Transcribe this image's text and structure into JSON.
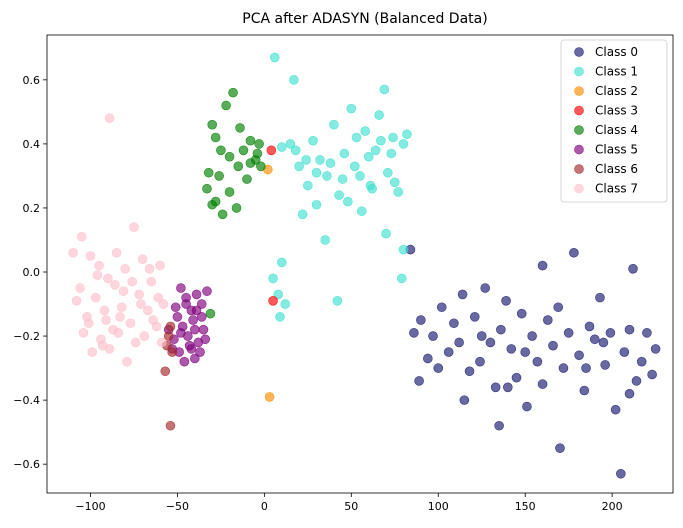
{
  "chart_data": {
    "type": "scatter",
    "title": "PCA after ADASYN (Balanced Data)",
    "xlabel": "",
    "ylabel": "",
    "xlim": [
      -125,
      235
    ],
    "ylim": [
      -0.69,
      0.74
    ],
    "xticks": [
      -100,
      -50,
      0,
      50,
      100,
      150,
      200
    ],
    "yticks": [
      -0.6,
      -0.4,
      -0.2,
      0.0,
      0.2,
      0.4,
      0.6
    ],
    "xtick_labels": [
      "−100",
      "−50",
      "0",
      "50",
      "100",
      "150",
      "200"
    ],
    "ytick_labels": [
      "−0.6",
      "−0.4",
      "−0.2",
      "0.0",
      "0.2",
      "0.4",
      "0.6"
    ],
    "grid": false,
    "legend_position": "top-right",
    "series": [
      {
        "name": "Class 0",
        "color": "#191970",
        "points": [
          [
            84,
            0.07
          ],
          [
            86,
            -0.19
          ],
          [
            89,
            -0.34
          ],
          [
            94,
            -0.27
          ],
          [
            97,
            -0.2
          ],
          [
            102,
            -0.11
          ],
          [
            106,
            -0.25
          ],
          [
            109,
            -0.16
          ],
          [
            112,
            -0.22
          ],
          [
            114,
            -0.07
          ],
          [
            118,
            -0.31
          ],
          [
            121,
            -0.14
          ],
          [
            124,
            -0.28
          ],
          [
            127,
            -0.05
          ],
          [
            130,
            -0.22
          ],
          [
            133,
            -0.36
          ],
          [
            136,
            -0.18
          ],
          [
            139,
            -0.09
          ],
          [
            142,
            -0.24
          ],
          [
            145,
            -0.33
          ],
          [
            148,
            -0.13
          ],
          [
            151,
            -0.42
          ],
          [
            154,
            -0.2
          ],
          [
            157,
            -0.28
          ],
          [
            160,
            0.02
          ],
          [
            163,
            -0.15
          ],
          [
            166,
            -0.23
          ],
          [
            169,
            -0.11
          ],
          [
            172,
            -0.3
          ],
          [
            175,
            -0.19
          ],
          [
            178,
            0.06
          ],
          [
            181,
            -0.26
          ],
          [
            184,
            -0.37
          ],
          [
            187,
            -0.17
          ],
          [
            190,
            -0.21
          ],
          [
            193,
            -0.08
          ],
          [
            196,
            -0.29
          ],
          [
            199,
            -0.19
          ],
          [
            202,
            -0.43
          ],
          [
            205,
            -0.63
          ],
          [
            207,
            -0.25
          ],
          [
            210,
            -0.18
          ],
          [
            212,
            0.01
          ],
          [
            214,
            -0.34
          ],
          [
            217,
            -0.28
          ],
          [
            220,
            -0.19
          ],
          [
            223,
            -0.32
          ],
          [
            225,
            -0.24
          ],
          [
            170,
            -0.55
          ],
          [
            135,
            -0.48
          ],
          [
            160,
            -0.35
          ],
          [
            185,
            -0.3
          ],
          [
            115,
            -0.4
          ],
          [
            100,
            -0.3
          ],
          [
            150,
            -0.25
          ],
          [
            125,
            -0.2
          ],
          [
            140,
            -0.36
          ],
          [
            195,
            -0.22
          ],
          [
            210,
            -0.38
          ],
          [
            90,
            -0.15
          ]
        ]
      },
      {
        "name": "Class 1",
        "color": "#40E0D0",
        "points": [
          [
            6,
            0.67
          ],
          [
            17,
            0.6
          ],
          [
            10,
            0.39
          ],
          [
            15,
            0.4
          ],
          [
            20,
            0.33
          ],
          [
            25,
            0.27
          ],
          [
            28,
            0.41
          ],
          [
            32,
            0.35
          ],
          [
            36,
            0.3
          ],
          [
            40,
            0.46
          ],
          [
            43,
            0.24
          ],
          [
            46,
            0.37
          ],
          [
            50,
            0.51
          ],
          [
            53,
            0.42
          ],
          [
            55,
            0.3
          ],
          [
            58,
            0.44
          ],
          [
            61,
            0.27
          ],
          [
            64,
            0.38
          ],
          [
            66,
            0.49
          ],
          [
            69,
            0.57
          ],
          [
            71,
            0.31
          ],
          [
            74,
            0.42
          ],
          [
            77,
            0.25
          ],
          [
            80,
            0.4
          ],
          [
            82,
            0.43
          ],
          [
            35,
            0.1
          ],
          [
            70,
            0.12
          ],
          [
            80,
            0.07
          ],
          [
            79,
            -0.02
          ],
          [
            42,
            -0.09
          ],
          [
            10,
            0.03
          ],
          [
            12,
            -0.1
          ],
          [
            8,
            -0.07
          ],
          [
            9,
            -0.14
          ],
          [
            5,
            -0.02
          ],
          [
            22,
            0.18
          ],
          [
            30,
            0.21
          ],
          [
            48,
            0.22
          ],
          [
            56,
            0.19
          ],
          [
            62,
            0.26
          ],
          [
            75,
            0.28
          ],
          [
            38,
            0.34
          ],
          [
            45,
            0.29
          ],
          [
            52,
            0.33
          ],
          [
            60,
            0.36
          ],
          [
            67,
            0.41
          ],
          [
            73,
            0.37
          ],
          [
            18,
            0.38
          ],
          [
            24,
            0.35
          ],
          [
            30,
            0.31
          ]
        ]
      },
      {
        "name": "Class 2",
        "color": "#FF8C00",
        "points": [
          [
            2,
            0.32
          ],
          [
            3,
            -0.39
          ]
        ]
      },
      {
        "name": "Class 3",
        "color": "#FF0000",
        "points": [
          [
            4,
            0.38
          ],
          [
            5,
            -0.09
          ]
        ]
      },
      {
        "name": "Class 4",
        "color": "#008000",
        "points": [
          [
            -30,
            0.46
          ],
          [
            -22,
            0.52
          ],
          [
            -18,
            0.56
          ],
          [
            -25,
            0.38
          ],
          [
            -28,
            0.42
          ],
          [
            -32,
            0.31
          ],
          [
            -33,
            0.26
          ],
          [
            -28,
            0.22
          ],
          [
            -24,
            0.18
          ],
          [
            -20,
            0.25
          ],
          [
            -15,
            0.33
          ],
          [
            -12,
            0.38
          ],
          [
            -8,
            0.41
          ],
          [
            -5,
            0.35
          ],
          [
            -3,
            0.4
          ],
          [
            -10,
            0.29
          ],
          [
            -14,
            0.45
          ],
          [
            -20,
            0.36
          ],
          [
            -26,
            0.3
          ],
          [
            -30,
            0.21
          ],
          [
            -16,
            0.2
          ],
          [
            -4,
            0.37
          ],
          [
            -8,
            0.34
          ],
          [
            -31,
            -0.13
          ],
          [
            -2,
            0.33
          ]
        ]
      },
      {
        "name": "Class 5",
        "color": "#800080",
        "points": [
          [
            -48,
            -0.05
          ],
          [
            -45,
            -0.08
          ],
          [
            -42,
            -0.12
          ],
          [
            -39,
            -0.07
          ],
          [
            -36,
            -0.1
          ],
          [
            -33,
            -0.06
          ],
          [
            -50,
            -0.14
          ],
          [
            -47,
            -0.17
          ],
          [
            -44,
            -0.2
          ],
          [
            -41,
            -0.15
          ],
          [
            -38,
            -0.22
          ],
          [
            -35,
            -0.18
          ],
          [
            -52,
            -0.21
          ],
          [
            -49,
            -0.25
          ],
          [
            -46,
            -0.28
          ],
          [
            -43,
            -0.23
          ],
          [
            -40,
            -0.27
          ],
          [
            -37,
            -0.25
          ],
          [
            -34,
            -0.21
          ],
          [
            -55,
            -0.18
          ],
          [
            -53,
            -0.24
          ],
          [
            -45,
            -0.1
          ],
          [
            -40,
            -0.18
          ],
          [
            -36,
            -0.14
          ],
          [
            -48,
            -0.19
          ],
          [
            -42,
            -0.24
          ],
          [
            -51,
            -0.11
          ],
          [
            -39,
            -0.12
          ]
        ]
      },
      {
        "name": "Class 6",
        "color": "#A52A2A",
        "points": [
          [
            -54,
            -0.17
          ],
          [
            -55,
            -0.2
          ],
          [
            -53,
            -0.25
          ],
          [
            -56,
            -0.23
          ],
          [
            -57,
            -0.31
          ],
          [
            -54,
            -0.48
          ]
        ]
      },
      {
        "name": "Class 7",
        "color": "#FFC0CB",
        "points": [
          [
            -110,
            0.06
          ],
          [
            -105,
            0.11
          ],
          [
            -100,
            0.05
          ],
          [
            -95,
            0.02
          ],
          [
            -90,
            -0.02
          ],
          [
            -85,
            0.06
          ],
          [
            -80,
            0.01
          ],
          [
            -75,
            0.14
          ],
          [
            -70,
            0.04
          ],
          [
            -65,
            -0.03
          ],
          [
            -60,
            0.02
          ],
          [
            -108,
            -0.09
          ],
          [
            -102,
            -0.14
          ],
          [
            -97,
            -0.08
          ],
          [
            -92,
            -0.12
          ],
          [
            -87,
            -0.18
          ],
          [
            -82,
            -0.11
          ],
          [
            -77,
            -0.16
          ],
          [
            -72,
            -0.07
          ],
          [
            -67,
            -0.12
          ],
          [
            -62,
            -0.17
          ],
          [
            -58,
            -0.1
          ],
          [
            -104,
            -0.19
          ],
          [
            -99,
            -0.25
          ],
          [
            -94,
            -0.21
          ],
          [
            -89,
            -0.24
          ],
          [
            -84,
            -0.19
          ],
          [
            -79,
            -0.28
          ],
          [
            -74,
            -0.22
          ],
          [
            -69,
            -0.2
          ],
          [
            -64,
            -0.15
          ],
          [
            -59,
            -0.22
          ],
          [
            -106,
            -0.05
          ],
          [
            -96,
            -0.01
          ],
          [
            -86,
            -0.04
          ],
          [
            -76,
            -0.03
          ],
          [
            -66,
            0.01
          ],
          [
            -89,
            0.48
          ],
          [
            -91,
            -0.15
          ],
          [
            -81,
            -0.06
          ],
          [
            -71,
            -0.1
          ],
          [
            -61,
            -0.08
          ],
          [
            -101,
            -0.16
          ],
          [
            -93,
            -0.23
          ],
          [
            -83,
            -0.14
          ]
        ]
      }
    ]
  }
}
